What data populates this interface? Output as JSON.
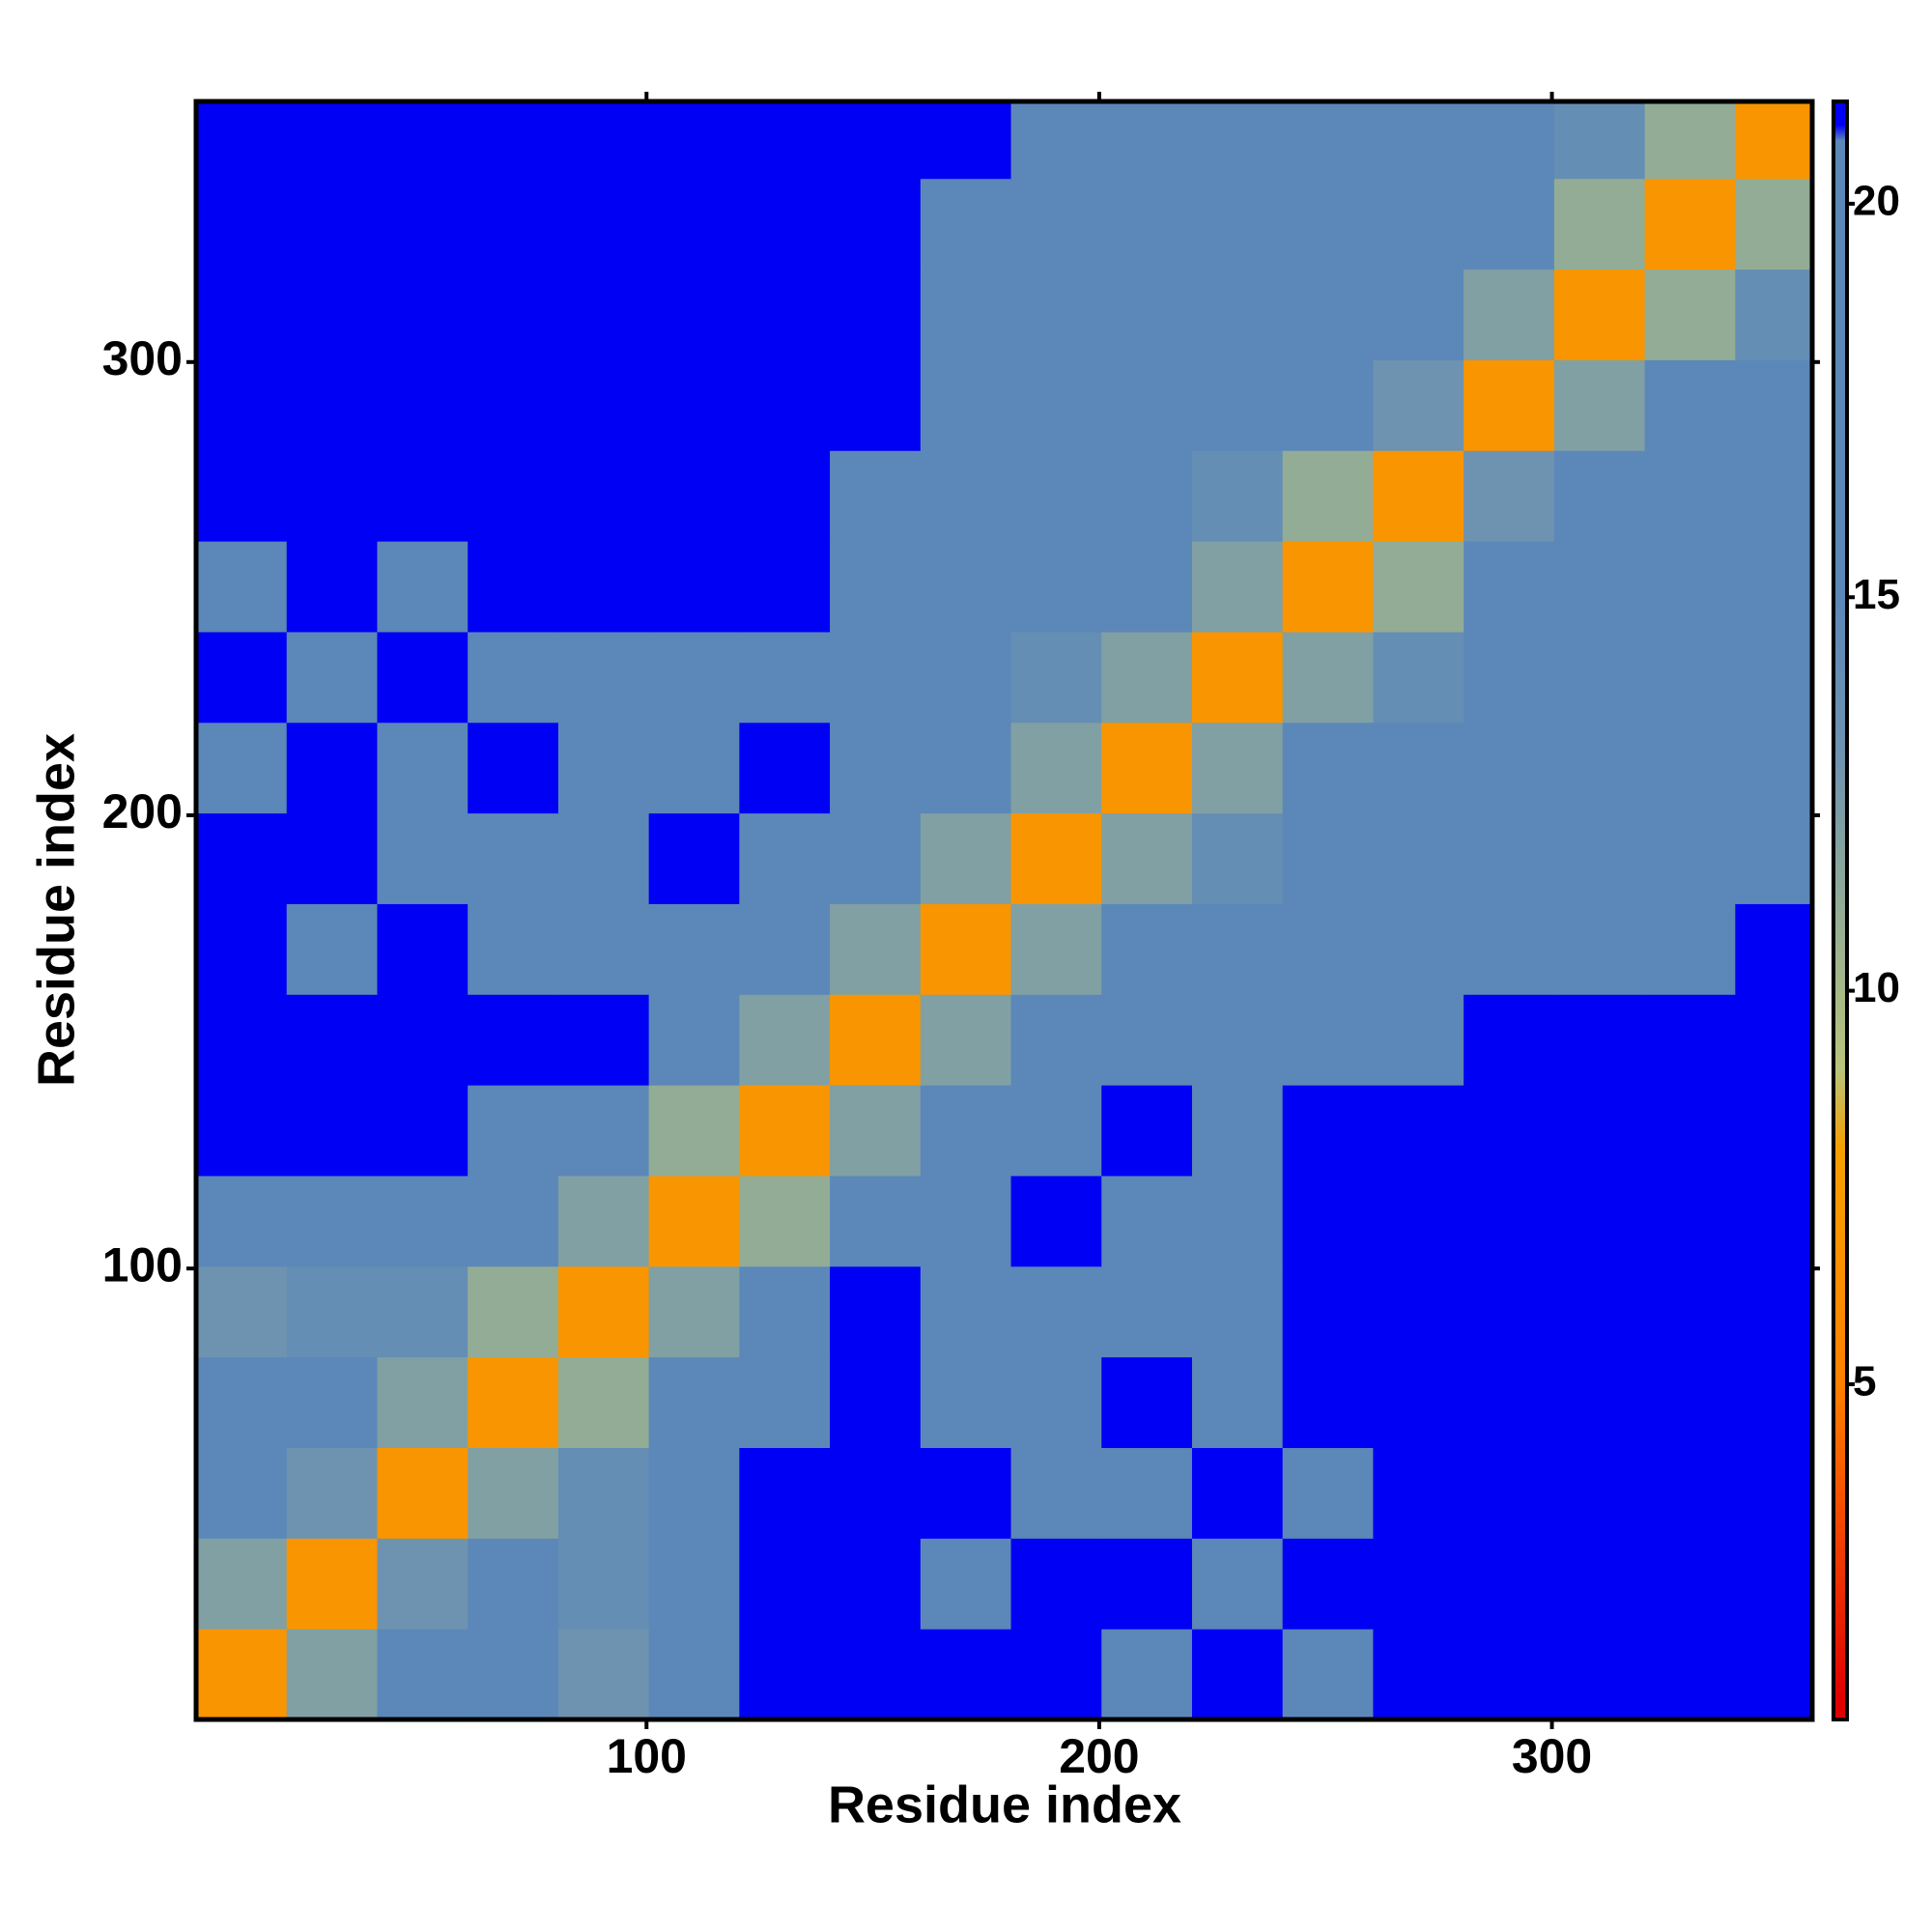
{
  "chart_data": {
    "type": "heatmap",
    "x_label": "Residue index",
    "y_label": "Residue index",
    "bins": [
      0.5,
      20.5,
      40.5,
      60.5,
      80.5,
      100.5,
      120.5,
      140.5,
      160.5,
      180.5,
      200.5,
      220.5,
      240.5,
      260.5,
      280.5,
      300.5,
      320.5,
      340.5,
      357.5
    ],
    "z": [
      [
        7,
        12,
        15,
        15,
        13,
        20,
        21,
        21,
        21,
        21,
        20,
        21,
        20,
        21,
        21,
        21,
        21,
        21
      ],
      [
        12,
        7,
        13,
        15,
        14,
        20,
        21,
        21,
        20,
        21,
        21,
        20,
        21,
        21,
        21,
        21,
        21,
        21
      ],
      [
        15,
        13,
        7,
        12,
        14,
        19,
        21,
        21,
        21,
        20,
        20,
        21,
        20,
        21,
        21,
        21,
        21,
        21
      ],
      [
        15,
        15,
        12,
        7,
        11,
        17,
        20,
        21,
        20,
        20,
        21,
        20,
        21,
        21,
        21,
        21,
        21,
        21
      ],
      [
        13,
        14,
        14,
        11,
        7,
        12,
        17,
        21,
        20,
        20,
        20,
        20,
        21,
        21,
        21,
        21,
        21,
        21
      ],
      [
        20,
        20,
        19,
        17,
        12,
        7,
        11,
        19,
        20,
        21,
        20,
        20,
        21,
        21,
        21,
        21,
        21,
        21
      ],
      [
        21,
        21,
        21,
        20,
        17,
        11,
        7,
        12,
        20,
        20,
        21,
        20,
        21,
        21,
        21,
        21,
        21,
        21
      ],
      [
        21,
        21,
        21,
        21,
        21,
        19,
        12,
        7,
        12,
        16,
        18,
        19,
        20,
        20,
        21,
        21,
        21,
        21
      ],
      [
        21,
        20,
        21,
        20,
        20,
        20,
        20,
        12,
        7,
        12,
        15,
        16,
        17,
        18,
        18,
        20,
        20,
        21
      ],
      [
        21,
        21,
        20,
        20,
        20,
        21,
        20,
        16,
        12,
        7,
        12,
        14,
        15,
        17,
        19,
        20,
        20,
        20
      ],
      [
        20,
        21,
        20,
        21,
        20,
        20,
        21,
        18,
        15,
        12,
        7,
        12,
        15,
        16,
        19,
        20,
        20,
        20
      ],
      [
        21,
        20,
        21,
        20,
        20,
        20,
        20,
        19,
        16,
        14,
        12,
        7,
        12,
        14,
        18,
        20,
        20,
        19
      ],
      [
        20,
        21,
        20,
        21,
        21,
        21,
        21,
        20,
        17,
        15,
        15,
        12,
        7,
        11,
        16,
        18,
        20,
        19
      ],
      [
        21,
        21,
        21,
        21,
        21,
        21,
        21,
        20,
        18,
        17,
        16,
        14,
        11,
        7,
        13,
        16,
        18,
        19
      ],
      [
        21,
        21,
        21,
        21,
        21,
        21,
        21,
        21,
        18,
        19,
        19,
        18,
        16,
        13,
        7,
        12,
        15,
        16
      ],
      [
        21,
        21,
        21,
        21,
        21,
        21,
        21,
        21,
        20,
        20,
        20,
        20,
        18,
        16,
        12,
        7,
        11,
        14
      ],
      [
        21,
        21,
        21,
        21,
        21,
        21,
        21,
        21,
        20,
        20,
        20,
        20,
        20,
        18,
        15,
        11,
        7,
        11
      ],
      [
        21,
        21,
        21,
        21,
        21,
        21,
        21,
        21,
        21,
        20,
        20,
        19,
        19,
        19,
        16,
        14,
        11,
        7
      ]
    ],
    "xlim": [
      0.5,
      357.5
    ],
    "ylim": [
      0.5,
      357.5
    ],
    "xticks": [
      100,
      200,
      300
    ],
    "yticks": [
      100,
      200,
      300
    ],
    "colorscale": [
      [
        1,
        "#e00000"
      ],
      [
        5,
        "#ff8000"
      ],
      [
        8,
        "#f5a000"
      ],
      [
        9,
        "#b8c57a"
      ],
      [
        13,
        "#6e93b0"
      ],
      [
        15,
        "#5b88b8"
      ],
      [
        20.8,
        "#5b88b8"
      ],
      [
        21,
        "#0000f5"
      ]
    ],
    "clim": [
      0.74,
      21.3
    ],
    "cticks": [
      5,
      10,
      15,
      20
    ]
  }
}
